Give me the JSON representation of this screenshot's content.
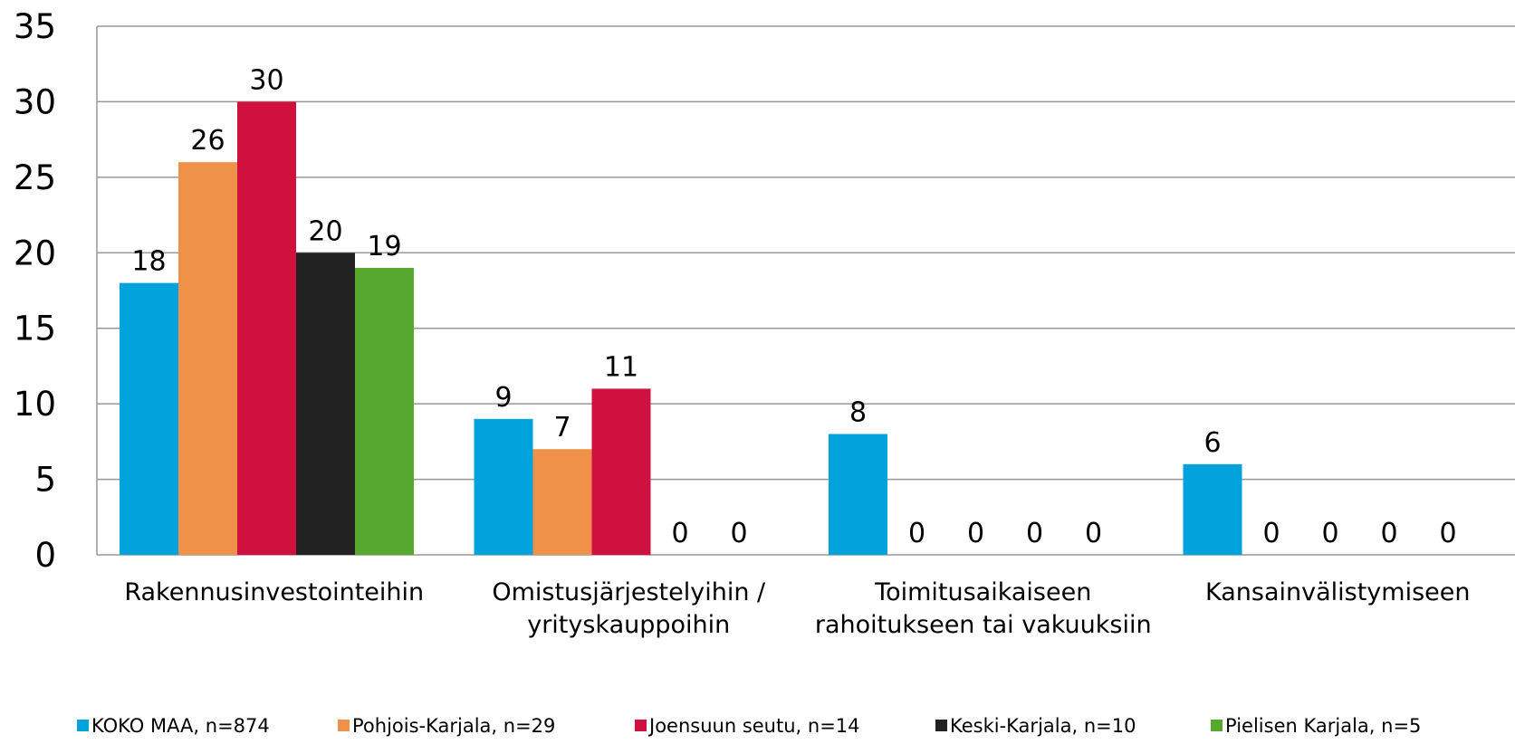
{
  "chart_data": {
    "type": "bar",
    "categories": [
      "Rakennusinvestointeihin",
      "Omistusjärjestelyihin /\nyrityskauppoihin",
      "Toimitusaikaiseen\nrahoitukseen tai vakuuksiin",
      "Kansainvälistymiseen"
    ],
    "series": [
      {
        "name": "KOKO MAA, n=874",
        "color": "#00a3dc",
        "values": [
          18,
          9,
          8,
          6
        ]
      },
      {
        "name": "Pohjois-Karjala, n=29",
        "color": "#f0914a",
        "values": [
          26,
          7,
          0,
          0
        ]
      },
      {
        "name": "Joensuun seutu, n=14",
        "color": "#d0103f",
        "values": [
          30,
          11,
          0,
          0
        ]
      },
      {
        "name": "Keski-Karjala, n=10",
        "color": "#222222",
        "values": [
          20,
          0,
          0,
          0
        ]
      },
      {
        "name": "Pielisen Karjala, n=5",
        "color": "#56a92e",
        "values": [
          19,
          0,
          0,
          0
        ]
      }
    ],
    "ylim": [
      0,
      35
    ],
    "yticks": [
      0,
      5,
      10,
      15,
      20,
      25,
      30,
      35
    ],
    "grid": true,
    "legend": "bottom"
  }
}
